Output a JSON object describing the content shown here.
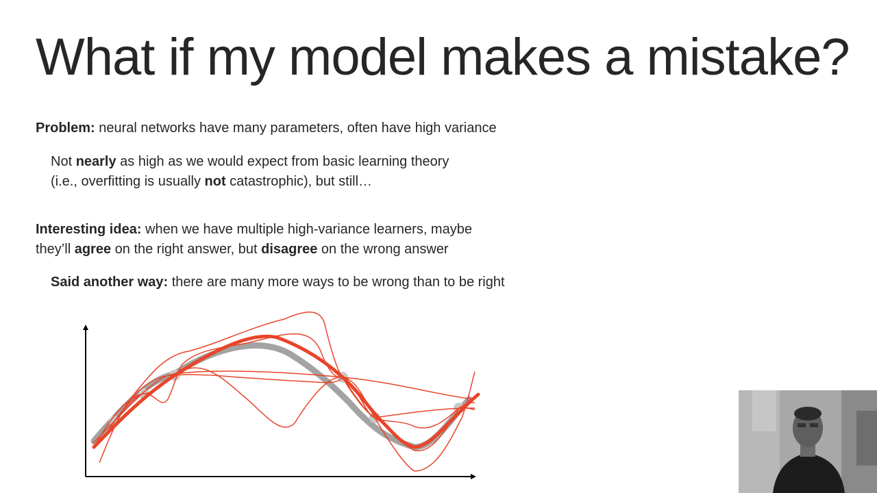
{
  "slide": {
    "title": "What if my model makes a mistake?",
    "problem": {
      "label": "Problem:",
      "text": " neural networks have many parameters, often have high variance"
    },
    "note": {
      "p1": "Not ",
      "b1": "nearly",
      "p2": " as high as we would expect from basic learning theory",
      "p3": "(i.e., overfitting is usually ",
      "b2": "not",
      "p4": " catastrophic), but still…"
    },
    "idea": {
      "label": "Interesting idea:",
      "l1": " when we have multiple high-variance learners, maybe",
      "p1": "they’ll ",
      "b1": "agree",
      "p2": " on the right answer, but ",
      "b2": "disagree",
      "p3": " on the wrong answer"
    },
    "said": {
      "label": "Said another way:",
      "text": " there are many more ways to be wrong than to be right"
    }
  },
  "colors": {
    "ensemble": "#e8452a",
    "true_function": "#8c8c8c",
    "point": "#c8c8c8",
    "axis": "#000000"
  }
}
